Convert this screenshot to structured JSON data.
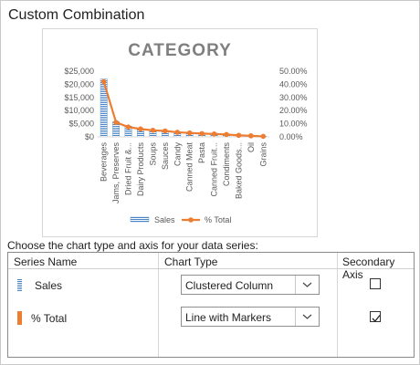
{
  "dialog": {
    "title": "Custom Combination",
    "prompt": "Choose the chart type and axis for your data series:"
  },
  "table": {
    "headers": {
      "series": "Series Name",
      "chart_type": "Chart Type",
      "secondary": "Secondary Axis"
    },
    "rows": [
      {
        "series": "Sales",
        "chart_type": "Clustered Column",
        "secondary_axis": false,
        "icon": "column-series-icon",
        "color": "#4a86c7"
      },
      {
        "series": "% Total",
        "chart_type": "Line with Markers",
        "secondary_axis": true,
        "icon": "line-series-icon",
        "color": "#ed7d31"
      }
    ]
  },
  "chart_data": {
    "type": "bar",
    "title": "CATEGORY",
    "categories": [
      "Beverages",
      "Jams, Preserves",
      "Dried Fruit &...",
      "Dairy Products",
      "Soups",
      "Sauces",
      "Candy",
      "Canned Meat",
      "Pasta",
      "Canned Fruit...",
      "Condiments",
      "Baked Goods...",
      "Oil",
      "Grains"
    ],
    "series": [
      {
        "name": "Sales",
        "type": "bar",
        "axis": "primary",
        "color": "#4a86c7",
        "values": [
          22000,
          5800,
          4100,
          3100,
          2700,
          2200,
          1900,
          1700,
          1500,
          1400,
          1100,
          800,
          600,
          250
        ]
      },
      {
        "name": "% Total",
        "type": "line",
        "axis": "secondary",
        "color": "#ed7d31",
        "values": [
          0.42,
          0.11,
          0.075,
          0.06,
          0.05,
          0.045,
          0.035,
          0.03,
          0.025,
          0.022,
          0.018,
          0.012,
          0.008,
          0.004
        ]
      }
    ],
    "y_ticks": [
      "$0",
      "$5,000",
      "$10,000",
      "$15,000",
      "$20,000",
      "$25,000"
    ],
    "y_ticks_right": [
      "0.00%",
      "10.00%",
      "20.00%",
      "30.00%",
      "40.00%",
      "50.00%"
    ],
    "ylim": [
      0,
      25000
    ],
    "y2lim": [
      0,
      0.5
    ],
    "legend": "bottom"
  }
}
